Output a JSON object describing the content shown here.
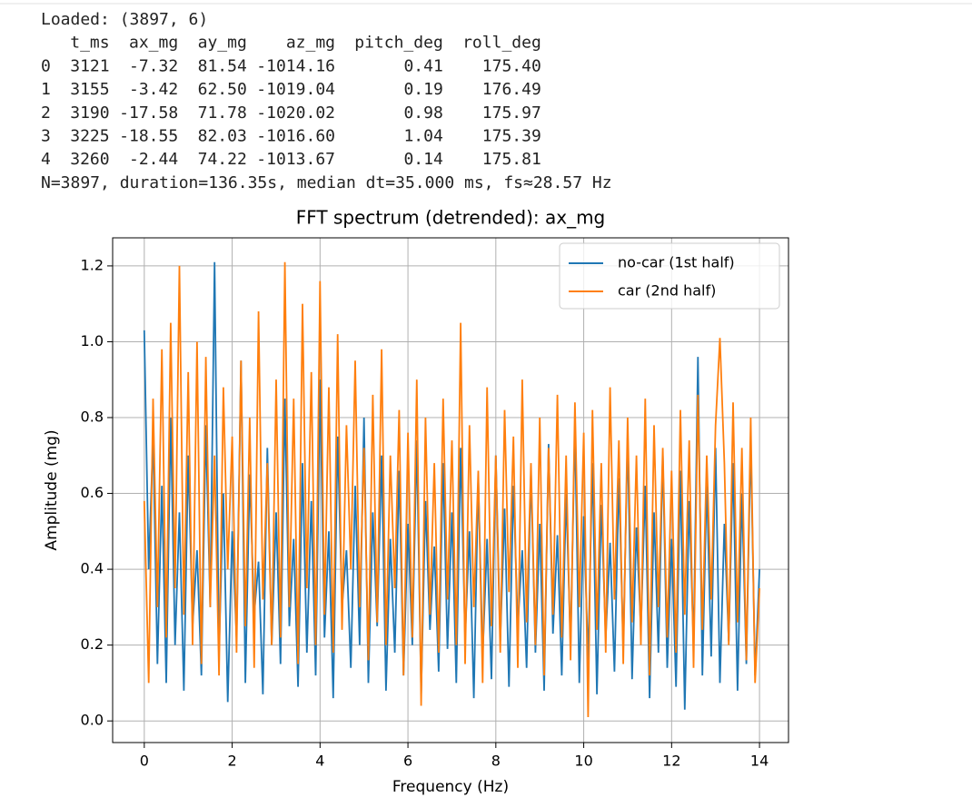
{
  "output": {
    "loaded": "Loaded: (3897, 6)",
    "columns": [
      "t_ms",
      "ax_mg",
      "ay_mg",
      "az_mg",
      "pitch_deg",
      "roll_deg"
    ],
    "rows": [
      [
        "0",
        "3121",
        "-7.32",
        "81.54",
        "-1014.16",
        "0.41",
        "175.40"
      ],
      [
        "1",
        "3155",
        "-3.42",
        "62.50",
        "-1019.04",
        "0.19",
        "176.49"
      ],
      [
        "2",
        "3190",
        "-17.58",
        "71.78",
        "-1020.02",
        "0.98",
        "175.97"
      ],
      [
        "3",
        "3225",
        "-18.55",
        "82.03",
        "-1016.60",
        "1.04",
        "175.39"
      ],
      [
        "4",
        "3260",
        "-2.44",
        "74.22",
        "-1013.67",
        "0.14",
        "175.81"
      ]
    ],
    "summary": "N=3897, duration=136.35s, median dt=35.000 ms, fs≈28.57 Hz"
  },
  "chart_data": {
    "type": "line",
    "title": "FFT spectrum (detrended): ax_mg",
    "xlabel": "Frequency (Hz)",
    "ylabel": "Amplitude (mg)",
    "x": [
      0,
      0.1,
      0.2,
      0.3,
      0.4,
      0.5,
      0.6,
      0.7,
      0.8,
      0.9,
      1,
      1.1,
      1.2,
      1.3,
      1.4,
      1.5,
      1.6,
      1.7,
      1.8,
      1.9,
      2,
      2.1,
      2.2,
      2.3,
      2.4,
      2.5,
      2.6,
      2.7,
      2.8,
      2.9,
      3,
      3.1,
      3.2,
      3.3,
      3.4,
      3.5,
      3.6,
      3.7,
      3.8,
      3.9,
      4,
      4.1,
      4.2,
      4.3,
      4.4,
      4.5,
      4.6,
      4.7,
      4.8,
      4.9,
      5,
      5.1,
      5.2,
      5.3,
      5.4,
      5.5,
      5.6,
      5.7,
      5.8,
      5.9,
      6,
      6.1,
      6.2,
      6.3,
      6.4,
      6.5,
      6.6,
      6.7,
      6.8,
      6.9,
      7,
      7.1,
      7.2,
      7.3,
      7.4,
      7.5,
      7.6,
      7.7,
      7.8,
      7.9,
      8,
      8.1,
      8.2,
      8.3,
      8.4,
      8.5,
      8.6,
      8.7,
      8.8,
      8.9,
      9,
      9.1,
      9.2,
      9.3,
      9.4,
      9.5,
      9.6,
      9.7,
      9.8,
      9.9,
      10,
      10.1,
      10.2,
      10.3,
      10.4,
      10.5,
      10.6,
      10.7,
      10.8,
      10.9,
      11,
      11.1,
      11.2,
      11.3,
      11.4,
      11.5,
      11.6,
      11.7,
      11.8,
      11.9,
      12,
      12.1,
      12.2,
      12.3,
      12.4,
      12.5,
      12.6,
      12.7,
      12.8,
      12.9,
      13,
      13.1,
      13.2,
      13.3,
      13.4,
      13.5,
      13.6,
      13.7,
      13.8,
      13.9,
      14
    ],
    "series": [
      {
        "name": "no-car (1st half)",
        "color": "#1f77b4",
        "values": [
          1.03,
          0.4,
          0.75,
          0.15,
          0.62,
          0.1,
          0.8,
          0.2,
          0.55,
          0.08,
          0.7,
          0.25,
          0.45,
          0.12,
          0.78,
          0.3,
          1.21,
          0.18,
          0.6,
          0.05,
          0.5,
          0.22,
          0.95,
          0.1,
          0.65,
          0.28,
          0.42,
          0.07,
          0.72,
          0.2,
          0.55,
          0.15,
          0.85,
          0.25,
          0.48,
          0.09,
          0.68,
          0.18,
          0.58,
          0.12,
          0.9,
          0.22,
          0.5,
          0.06,
          0.75,
          0.3,
          0.45,
          0.14,
          0.62,
          0.2,
          0.8,
          0.1,
          0.55,
          0.25,
          0.7,
          0.08,
          0.48,
          0.18,
          0.66,
          0.12,
          0.52,
          0.2,
          0.74,
          0.07,
          0.58,
          0.24,
          0.46,
          0.13,
          0.68,
          0.19,
          0.55,
          0.1,
          0.72,
          0.22,
          0.5,
          0.06,
          0.64,
          0.17,
          0.48,
          0.11,
          0.7,
          0.21,
          0.56,
          0.09,
          0.62,
          0.25,
          0.45,
          0.14,
          0.66,
          0.18,
          0.52,
          0.08,
          0.73,
          0.23,
          0.49,
          0.12,
          0.6,
          0.2,
          0.78,
          0.1,
          0.54,
          0.16,
          0.68,
          0.07,
          0.57,
          0.22,
          0.47,
          0.13,
          0.64,
          0.19,
          0.75,
          0.11,
          0.51,
          0.24,
          0.62,
          0.06,
          0.55,
          0.18,
          0.7,
          0.14,
          0.48,
          0.09,
          0.66,
          0.03,
          0.58,
          0.2,
          0.96,
          0.12,
          0.63,
          0.17,
          0.72,
          0.1,
          0.52,
          0.21,
          0.68,
          0.08,
          0.6,
          0.15,
          0.74,
          0.12,
          0.4
        ]
      },
      {
        "name": "car (2nd half)",
        "color": "#ff7f0e",
        "values": [
          0.58,
          0.1,
          0.85,
          0.3,
          0.98,
          0.22,
          1.05,
          0.35,
          1.2,
          0.28,
          0.92,
          0.2,
          1.0,
          0.15,
          0.96,
          0.3,
          0.7,
          0.12,
          0.88,
          0.4,
          0.75,
          0.18,
          0.95,
          0.25,
          0.8,
          0.14,
          1.08,
          0.32,
          0.68,
          0.2,
          0.9,
          0.22,
          1.21,
          0.3,
          0.85,
          0.15,
          1.1,
          0.35,
          0.92,
          0.2,
          1.16,
          0.28,
          0.88,
          0.18,
          1.02,
          0.24,
          0.78,
          0.4,
          0.95,
          0.3,
          0.72,
          0.16,
          0.86,
          0.26,
          0.98,
          0.2,
          0.7,
          0.35,
          0.82,
          0.12,
          0.76,
          0.22,
          0.9,
          0.04,
          0.8,
          0.28,
          0.68,
          0.18,
          0.85,
          0.32,
          0.74,
          0.2,
          1.05,
          0.15,
          0.78,
          0.3,
          0.66,
          0.1,
          0.88,
          0.25,
          0.7,
          0.18,
          0.82,
          0.34,
          0.75,
          0.14,
          0.9,
          0.26,
          0.68,
          0.2,
          0.8,
          0.12,
          0.72,
          0.28,
          0.86,
          0.22,
          0.7,
          0.16,
          0.84,
          0.3,
          0.76,
          0.01,
          0.82,
          0.24,
          0.68,
          0.18,
          0.88,
          0.32,
          0.74,
          0.15,
          0.8,
          0.26,
          0.7,
          0.2,
          0.85,
          0.12,
          0.78,
          0.3,
          0.72,
          0.22,
          0.66,
          0.18,
          0.82,
          0.28,
          0.74,
          0.14,
          0.86,
          0.24,
          0.7,
          0.32,
          0.78,
          1.01,
          0.68,
          0.2,
          0.84,
          0.26,
          0.72,
          0.16,
          0.8,
          0.1,
          0.35
        ]
      }
    ],
    "xlim": [
      -0.72,
      14.66
    ],
    "xticks": [
      0,
      2,
      4,
      6,
      8,
      10,
      12,
      14
    ],
    "ylim": [
      -0.057,
      1.274
    ],
    "yticks": [
      {
        "value": 0,
        "label": "0.0"
      },
      0.2,
      0.4,
      0.6,
      0.8,
      {
        "value": 1,
        "label": "1.0"
      },
      1.2
    ],
    "grid": true,
    "legend": "upper right"
  }
}
